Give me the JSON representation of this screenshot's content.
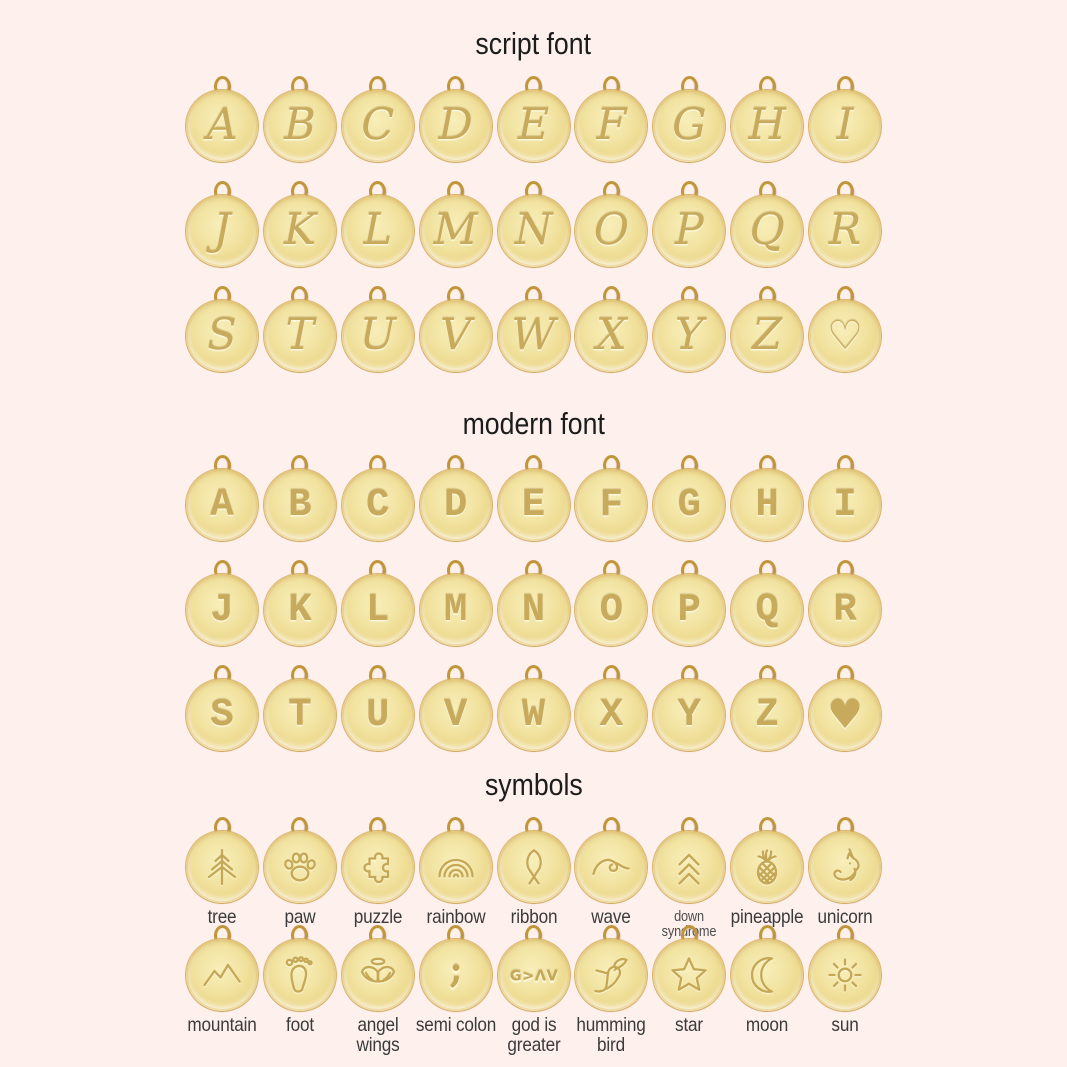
{
  "page": {
    "background_color": "#fdf0ed"
  },
  "colors": {
    "disc_gold_center": "#f8eeb9",
    "disc_gold_edge": "#dfc171",
    "bail_gold": "#c0953c",
    "engraving_gold": "#c7aa5b",
    "title_text": "#1c1c1c",
    "label_text": "#3b3b3b"
  },
  "sections": [
    {
      "id": "script",
      "title": "script font",
      "style": "script",
      "rows": [
        [
          "A",
          "B",
          "C",
          "D",
          "E",
          "F",
          "G",
          "H",
          "I"
        ],
        [
          "J",
          "K",
          "L",
          "M",
          "N",
          "O",
          "P",
          "Q",
          "R"
        ],
        [
          "S",
          "T",
          "U",
          "V",
          "W",
          "X",
          "Y",
          "Z",
          "♡"
        ]
      ]
    },
    {
      "id": "modern",
      "title": "modern font",
      "style": "modern",
      "rows": [
        [
          "A",
          "B",
          "C",
          "D",
          "E",
          "F",
          "G",
          "H",
          "I"
        ],
        [
          "J",
          "K",
          "L",
          "M",
          "N",
          "O",
          "P",
          "Q",
          "R"
        ],
        [
          "S",
          "T",
          "U",
          "V",
          "W",
          "X",
          "Y",
          "Z",
          "♥"
        ]
      ]
    },
    {
      "id": "symbols",
      "title": "symbols",
      "style": "symbols",
      "rows": [
        [
          {
            "icon": "tree-icon",
            "label": "tree"
          },
          {
            "icon": "paw-icon",
            "label": "paw"
          },
          {
            "icon": "puzzle-icon",
            "label": "puzzle"
          },
          {
            "icon": "rainbow-icon",
            "label": "rainbow"
          },
          {
            "icon": "ribbon-icon",
            "label": "ribbon"
          },
          {
            "icon": "wave-icon",
            "label": "wave"
          },
          {
            "icon": "down-syndrome-icon",
            "label": "down syndrome",
            "small_label": true
          },
          {
            "icon": "pineapple-icon",
            "label": "pineapple"
          },
          {
            "icon": "unicorn-icon",
            "label": "unicorn"
          }
        ],
        [
          {
            "icon": "mountain-icon",
            "label": "mountain"
          },
          {
            "icon": "foot-icon",
            "label": "foot"
          },
          {
            "icon": "angel-wings-icon",
            "label": "angel wings"
          },
          {
            "icon": "semicolon-icon",
            "label": "semi colon"
          },
          {
            "icon": "god-is-greater-icon",
            "label": "god is greater",
            "glyphs": "G>ΛV"
          },
          {
            "icon": "hummingbird-icon",
            "label": "humming bird"
          },
          {
            "icon": "star-icon",
            "label": "star"
          },
          {
            "icon": "moon-icon",
            "label": "moon"
          },
          {
            "icon": "sun-icon",
            "label": "sun"
          }
        ]
      ]
    }
  ]
}
